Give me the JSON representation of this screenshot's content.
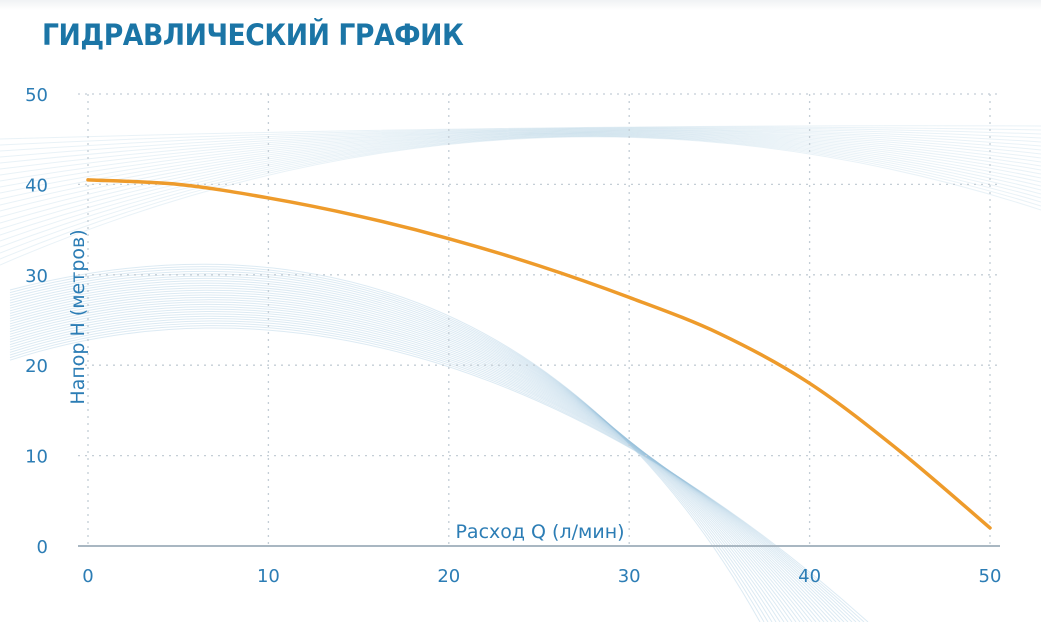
{
  "title": "ГИДРАВЛИЧЕСКИЙ ГРАФИК",
  "chart_data": {
    "type": "line",
    "title": "ГИДРАВЛИЧЕСКИЙ ГРАФИК",
    "xlabel": "Расход Q (л/мин)",
    "ylabel": "Напор H (метров)",
    "xlim": [
      0,
      50
    ],
    "ylim": [
      0,
      50
    ],
    "xticks": [
      0,
      10,
      20,
      30,
      40,
      50
    ],
    "yticks": [
      0,
      10,
      20,
      30,
      40,
      50
    ],
    "grid": true,
    "series": [
      {
        "color": "#ee9b2b",
        "x": [
          0,
          5,
          10,
          15,
          20,
          25,
          30,
          35,
          40,
          45,
          50
        ],
        "y": [
          40.5,
          40.0,
          38.5,
          36.5,
          34.0,
          31.0,
          27.5,
          23.5,
          18.0,
          10.5,
          2.0
        ]
      }
    ]
  },
  "colors": {
    "accent": "#1b75a6",
    "curve": "#ee9b2b",
    "grid": "#c4ced6",
    "decor": "#9cc3dc"
  }
}
